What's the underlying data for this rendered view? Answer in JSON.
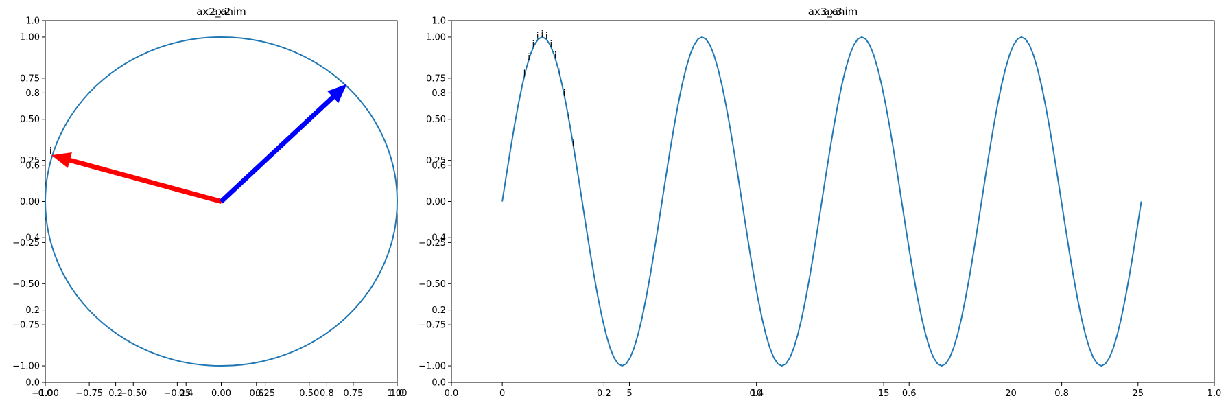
{
  "colors": {
    "line": "#1f77b4",
    "arrow_a": "#ff0000",
    "arrow_b": "#0000ff",
    "axis": "#000000",
    "background": "#ffffff"
  },
  "chart_data": [
    {
      "type": "line",
      "titles": [
        "ax2_anim",
        "ax2"
      ],
      "xlim": [
        -1.0,
        1.0
      ],
      "ylim": [
        -1.1,
        1.1
      ],
      "x_ticks": [
        -1.0,
        -0.75,
        -0.5,
        -0.25,
        0.0,
        0.25,
        0.5,
        0.75,
        1.0
      ],
      "x_tick_labels": [
        "−1.00",
        "−0.75",
        "−0.50",
        "−0.25",
        "0.00",
        "0.25",
        "0.50",
        "0.75",
        "1.00"
      ],
      "y_ticks": [
        -1.0,
        -0.75,
        -0.5,
        -0.25,
        0.0,
        0.25,
        0.5,
        0.75,
        1.0
      ],
      "y_tick_labels": [
        "−1.00",
        "−0.75",
        "−0.50",
        "−0.25",
        "0.00",
        "0.25",
        "0.50",
        "0.75",
        "1.00"
      ],
      "overlay_ticks": [
        "0.0",
        "0.2",
        "0.4",
        "0.6",
        "0.8",
        "1.0"
      ],
      "series": [
        {
          "kind": "unit-circle",
          "center": [
            0,
            0
          ],
          "radius": 1.0
        }
      ],
      "arrows": [
        {
          "color": "red",
          "from": [
            0,
            0
          ],
          "to": [
            -0.96,
            0.28
          ]
        },
        {
          "color": "blue",
          "from": [
            0,
            0
          ],
          "to": [
            0.71,
            0.71
          ]
        }
      ],
      "annotations": [
        {
          "text": "i",
          "x": -0.97,
          "y": 0.29
        }
      ],
      "grid": false
    },
    {
      "type": "line",
      "titles": [
        "ax3_anim",
        "ax3"
      ],
      "xlim": [
        -2.0,
        28.0
      ],
      "ylim": [
        -1.1,
        1.1
      ],
      "x_ticks": [
        0,
        5,
        10,
        15,
        20,
        25
      ],
      "x_tick_labels": [
        "0",
        "5",
        "10",
        "15",
        "20",
        "25"
      ],
      "y_ticks": [
        -1.0,
        -0.75,
        -0.5,
        -0.25,
        0.0,
        0.25,
        0.5,
        0.75,
        1.0
      ],
      "y_tick_labels": [
        "−1.00",
        "−0.75",
        "−0.50",
        "−0.25",
        "0.00",
        "0.25",
        "0.50",
        "0.75",
        "1.00"
      ],
      "overlay_ticks": [
        "0.0",
        "0.2",
        "0.4",
        "0.6",
        "0.8",
        "1.0"
      ],
      "series": [
        {
          "kind": "sine",
          "x_start": 0,
          "x_end": 25.13,
          "periods": 4,
          "amplitude": 1.0
        }
      ],
      "annotations": [
        {
          "text": "i",
          "x": 0.87,
          "y": 0.76
        },
        {
          "text": "i",
          "x": 1.05,
          "y": 0.86
        },
        {
          "text": "i",
          "x": 1.22,
          "y": 0.94
        },
        {
          "text": "i",
          "x": 1.39,
          "y": 0.99
        },
        {
          "text": "i",
          "x": 1.57,
          "y": 1.0
        },
        {
          "text": "i",
          "x": 1.74,
          "y": 0.99
        },
        {
          "text": "i",
          "x": 1.92,
          "y": 0.94
        },
        {
          "text": "i",
          "x": 2.09,
          "y": 0.87
        },
        {
          "text": "i",
          "x": 2.27,
          "y": 0.77
        },
        {
          "text": "i",
          "x": 2.44,
          "y": 0.64
        },
        {
          "text": "i",
          "x": 2.62,
          "y": 0.5
        },
        {
          "text": "i",
          "x": 2.79,
          "y": 0.34
        }
      ],
      "grid": false
    }
  ]
}
